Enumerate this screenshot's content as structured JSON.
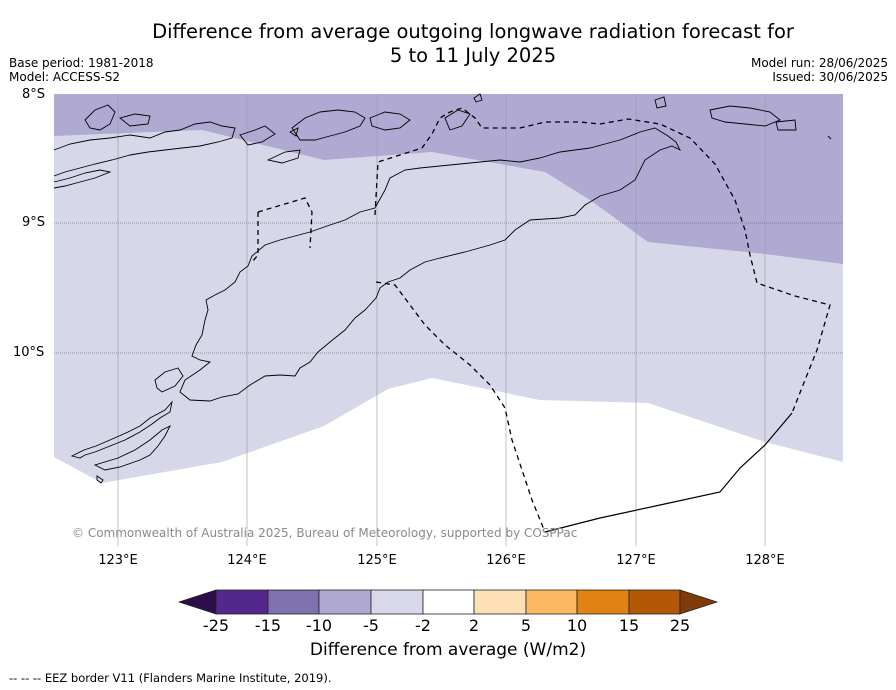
{
  "title_line1": "Difference from average outgoing longwave radiation forecast for",
  "title_line2": "5 to 11 July 2025",
  "base_period": "Base period: 1981-2018",
  "model": "Model: ACCESS-S2",
  "model_run": "Model run: 28/06/2025",
  "issued": "Issued: 30/06/2025",
  "lat_labels": [
    "8°S",
    "9°S",
    "10°S"
  ],
  "lon_labels": [
    "123°E",
    "124°E",
    "125°E",
    "126°E",
    "127°E",
    "128°E"
  ],
  "copyright": "© Commonwealth of Australia 2025, Bureau of Meteorology, supported by COSPPac",
  "colorbar": {
    "title": "Difference from average (W/m2)",
    "tick_labels": [
      "-25",
      "-15",
      "-10",
      "-5",
      "-2",
      "2",
      "5",
      "10",
      "15",
      "25"
    ],
    "colors": [
      "#2d0d4a",
      "#54278f",
      "#7f71ae",
      "#b0aad3",
      "#d8d8ea",
      "#ffffff",
      "#fde0b6",
      "#fdb862",
      "#e08214",
      "#b35806",
      "#7f3b08"
    ]
  },
  "footnote": "--  --  -- EEZ border V11 (Flanders Marine Institute, 2019)."
}
